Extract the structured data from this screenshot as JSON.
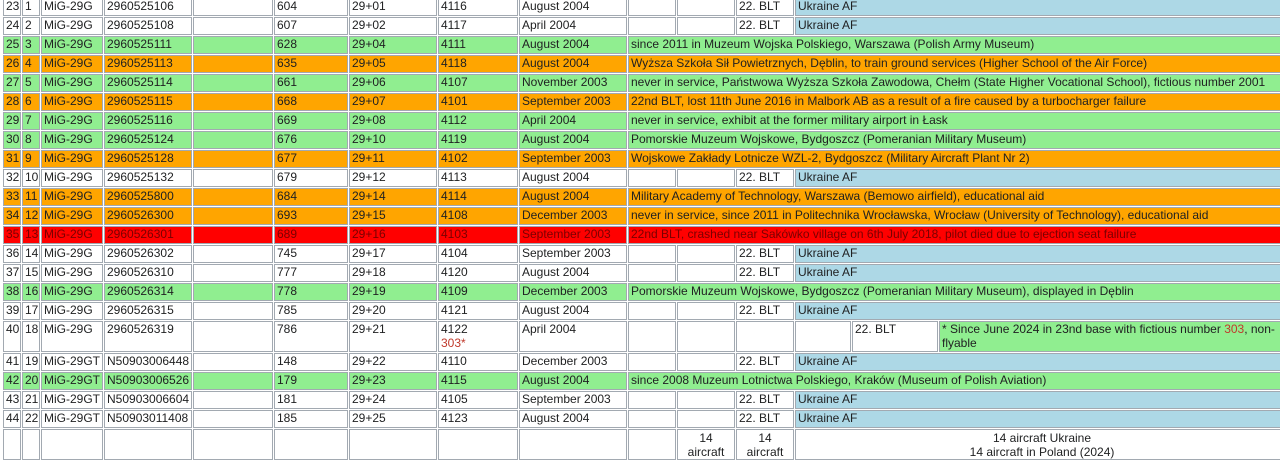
{
  "table": {
    "rows": [
      {
        "no": "23",
        "n": "1",
        "type": "MiG-29G",
        "serial": "2960525106",
        "side": "604",
        "code": "29+01",
        "factory": "4116",
        "date": "August 2004",
        "unit": "22. BLT",
        "note": "Ukraine AF",
        "color": "#ffffff",
        "note_color": "#add8e6"
      },
      {
        "no": "24",
        "n": "2",
        "type": "MiG-29G",
        "serial": "2960525108",
        "side": "607",
        "code": "29+02",
        "factory": "4117",
        "date": "April 2004",
        "unit": "22. BLT",
        "note": "Ukraine AF",
        "color": "#ffffff",
        "note_color": "#add8e6"
      },
      {
        "no": "25",
        "n": "3",
        "type": "MiG-29G",
        "serial": "2960525111",
        "side": "628",
        "code": "29+04",
        "factory": "4111",
        "date": "August 2004",
        "note": "since 2011 in Muzeum Wojska Polskiego, Warszawa (Polish Army Museum)",
        "color": "#90ee90"
      },
      {
        "no": "26",
        "n": "4",
        "type": "MiG-29G",
        "serial": "2960525113",
        "side": "635",
        "code": "29+05",
        "factory": "4118",
        "date": "August 2004",
        "note": "Wyższa Szkoła Sił Powietrznych, Dęblin, to train ground services (Higher School of the Air Force)",
        "color": "#ffa500"
      },
      {
        "no": "27",
        "n": "5",
        "type": "MiG-29G",
        "serial": "2960525114",
        "side": "661",
        "code": "29+06",
        "factory": "4107",
        "date": "November 2003",
        "note": "never in service, Państwowa Wyższa Szkoła Zawodowa, Chełm (State Higher Vocational School), fictious number 2001",
        "color": "#90ee90"
      },
      {
        "no": "28",
        "n": "6",
        "type": "MiG-29G",
        "serial": "2960525115",
        "side": "668",
        "code": "29+07",
        "factory": "4101",
        "date": "September 2003",
        "note": "22nd BLT, lost 11th June 2016 in Malbork AB as a result of a fire caused by a turbocharger failure",
        "color": "#ffa500"
      },
      {
        "no": "29",
        "n": "7",
        "type": "MiG-29G",
        "serial": "2960525116",
        "side": "669",
        "code": "29+08",
        "factory": "4112",
        "date": "April 2004",
        "note": "never in service, exhibit at the former military airport in Łask",
        "color": "#90ee90"
      },
      {
        "no": "30",
        "n": "8",
        "type": "MiG-29G",
        "serial": "2960525124",
        "side": "676",
        "code": "29+10",
        "factory": "4119",
        "date": "August 2004",
        "note": "Pomorskie Muzeum Wojskowe, Bydgoszcz (Pomeranian Military Museum)",
        "color": "#90ee90"
      },
      {
        "no": "31",
        "n": "9",
        "type": "MiG-29G",
        "serial": "2960525128",
        "side": "677",
        "code": "29+11",
        "factory": "4102",
        "date": "September 2003",
        "note": "Wojskowe Zakłady Lotnicze WZL-2, Bydgoszcz (Military Aircraft Plant Nr 2)",
        "color": "#ffa500"
      },
      {
        "no": "32",
        "n": "10",
        "type": "MiG-29G",
        "serial": "2960525132",
        "side": "679",
        "code": "29+12",
        "factory": "4113",
        "date": "August 2004",
        "unit": "22. BLT",
        "note": "Ukraine AF",
        "color": "#ffffff",
        "note_color": "#add8e6"
      },
      {
        "no": "33",
        "n": "11",
        "type": "MiG-29G",
        "serial": "2960525800",
        "side": "684",
        "code": "29+14",
        "factory": "4114",
        "date": "August 2004",
        "note": "Military Academy of Technology, Warszawa (Bemowo airfield), educational aid",
        "color": "#ffa500"
      },
      {
        "no": "34",
        "n": "12",
        "type": "MiG-29G",
        "serial": "2960526300",
        "side": "693",
        "code": "29+15",
        "factory": "4108",
        "date": "December 2003",
        "note": "never in service, since 2011 in Politechnika Wrocławska, Wrocław (University of Technology), educational aid",
        "color": "#ffa500"
      },
      {
        "no": "35",
        "n": "13",
        "type": "MiG-29G",
        "serial": "2960526301",
        "side": "689",
        "code": "29+16",
        "factory": "4103",
        "date": "September 2003",
        "note": "22nd BLT, crashed near Sakówko village on 6th July 2018, pilot died due to ejection seat failure",
        "color": "#ff0000"
      },
      {
        "no": "36",
        "n": "14",
        "type": "MiG-29G",
        "serial": "2960526302",
        "side": "745",
        "code": "29+17",
        "factory": "4104",
        "date": "September 2003",
        "unit": "22. BLT",
        "note": "Ukraine AF",
        "color": "#ffffff",
        "note_color": "#add8e6"
      },
      {
        "no": "37",
        "n": "15",
        "type": "MiG-29G",
        "serial": "2960526310",
        "side": "777",
        "code": "29+18",
        "factory": "4120",
        "date": "August 2004",
        "unit": "22. BLT",
        "note": "Ukraine AF",
        "color": "#ffffff",
        "note_color": "#add8e6"
      },
      {
        "no": "38",
        "n": "16",
        "type": "MiG-29G",
        "serial": "2960526314",
        "side": "778",
        "code": "29+19",
        "factory": "4109",
        "date": "December 2003",
        "note": "Pomorskie Muzeum Wojskowe, Bydgoszcz (Pomeranian Military Museum), displayed in Dęblin",
        "color": "#90ee90"
      },
      {
        "no": "39",
        "n": "17",
        "type": "MiG-29G",
        "serial": "2960526315",
        "side": "785",
        "code": "29+20",
        "factory": "4121",
        "date": "August 2004",
        "unit": "22. BLT",
        "note": "Ukraine AF",
        "color": "#ffffff",
        "note_color": "#add8e6"
      },
      {
        "no": "40",
        "n": "18",
        "type": "MiG-29G",
        "serial": "2960526319",
        "side": "786",
        "code": "29+21",
        "factory": "4122",
        "factory_extra": "303*",
        "date": "April 2004",
        "unit": "22. BLT",
        "note_parts": [
          "* Since June 2024 in 23nd base with fictious number ",
          "303",
          ", non-flyable"
        ],
        "color": "#ffffff",
        "note_color": "#90ee90"
      },
      {
        "no": "41",
        "n": "19",
        "type": "MiG-29GT",
        "serial": "N50903006448",
        "side": "148",
        "code": "29+22",
        "factory": "4110",
        "date": "December 2003",
        "unit": "22. BLT",
        "note": "Ukraine AF",
        "color": "#ffffff",
        "note_color": "#add8e6"
      },
      {
        "no": "42",
        "n": "20",
        "type": "MiG-29GT",
        "serial": "N50903006526",
        "side": "179",
        "code": "29+23",
        "factory": "4115",
        "date": "August 2004",
        "note": "since 2008 Muzeum Lotnictwa Polskiego, Kraków (Museum of Polish Aviation)",
        "color": "#90ee90"
      },
      {
        "no": "43",
        "n": "21",
        "type": "MiG-29GT",
        "serial": "N50903006604",
        "side": "181",
        "code": "29+24",
        "factory": "4105",
        "date": "September 2003",
        "unit": "22. BLT",
        "note": "Ukraine AF",
        "color": "#ffffff",
        "note_color": "#add8e6"
      },
      {
        "no": "44",
        "n": "22",
        "type": "MiG-29GT",
        "serial": "N50903011408",
        "side": "185",
        "code": "29+25",
        "factory": "4123",
        "date": "August 2004",
        "unit": "22. BLT",
        "note": "Ukraine AF",
        "color": "#ffffff",
        "note_color": "#add8e6"
      }
    ],
    "footer": [
      "14 aircraft",
      "14 aircraft",
      "14 aircraft Ukraine",
      "14 aircraft in Poland (2024)"
    ],
    "highlight_color": "#c0392b"
  }
}
